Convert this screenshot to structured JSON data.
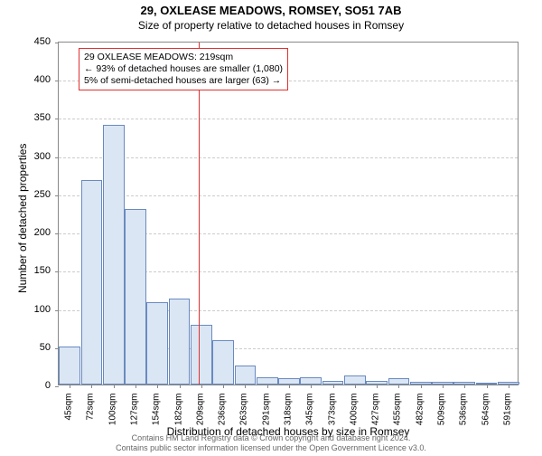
{
  "header": {
    "address": "29, OXLEASE MEADOWS, ROMSEY, SO51 7AB",
    "subtitle": "Size of property relative to detached houses in Romsey"
  },
  "chart": {
    "type": "histogram",
    "ylabel": "Number of detached properties",
    "xlabel": "Distribution of detached houses by size in Romsey",
    "ylim": [
      0,
      450
    ],
    "ytick_step": 50,
    "yticks": [
      0,
      50,
      100,
      150,
      200,
      250,
      300,
      350,
      400,
      450
    ],
    "xticks": [
      "45sqm",
      "72sqm",
      "100sqm",
      "127sqm",
      "154sqm",
      "182sqm",
      "209sqm",
      "236sqm",
      "263sqm",
      "291sqm",
      "318sqm",
      "345sqm",
      "373sqm",
      "400sqm",
      "427sqm",
      "455sqm",
      "482sqm",
      "509sqm",
      "536sqm",
      "564sqm",
      "591sqm"
    ],
    "bar_color": "#dbe6f5",
    "bar_border_color": "#6a8abf",
    "grid_color": "#cccccc",
    "border_color": "#888888",
    "background_color": "#ffffff",
    "values": [
      50,
      268,
      340,
      230,
      108,
      112,
      78,
      58,
      25,
      10,
      8,
      10,
      5,
      12,
      5,
      8,
      4,
      3,
      3,
      2,
      3
    ],
    "reference_value": 219,
    "reference_color": "#e03030",
    "x_min": 45,
    "x_step": 27.3,
    "label_fontsize": 11,
    "axis_fontsize": 12
  },
  "annotation": {
    "line1": "29 OXLEASE MEADOWS: 219sqm",
    "line2": "← 93% of detached houses are smaller (1,080)",
    "line3": "5% of semi-detached houses are larger (63) →",
    "border_color": "#e03030"
  },
  "footer": {
    "line1": "Contains HM Land Registry data © Crown copyright and database right 2024.",
    "line2": "Contains public sector information licensed under the Open Government Licence v3.0."
  }
}
